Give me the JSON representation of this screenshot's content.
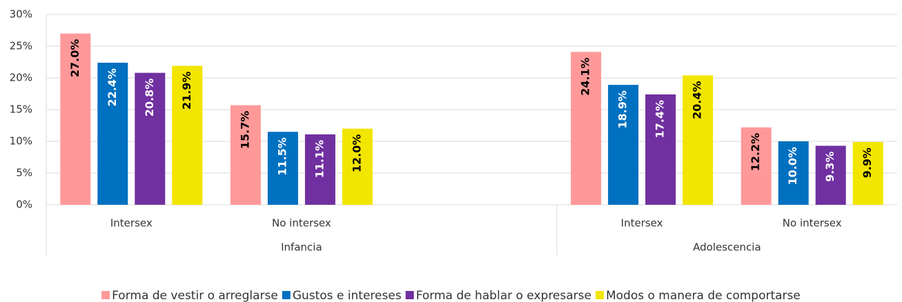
{
  "chart_data": {
    "type": "bar",
    "categories": [
      "Intersex",
      "No intersex",
      null,
      "Intersex",
      "No intersex"
    ],
    "groups": [
      {
        "name": "Infancia",
        "size": 3
      },
      {
        "name": "Adolescencia",
        "size": 2
      }
    ],
    "series": [
      {
        "name": "Forma de vestir o arreglarse",
        "color": "#ff9999",
        "label_color": "#000000",
        "values": [
          27.0,
          15.7,
          null,
          24.1,
          12.2
        ],
        "value_labels": [
          "27.0%",
          "15.7%",
          null,
          "24.1%",
          "12.2%"
        ]
      },
      {
        "name": "Gustos e intereses",
        "color": "#0070c0",
        "label_color": "#ffffff",
        "values": [
          22.4,
          11.5,
          null,
          18.9,
          10.0
        ],
        "value_labels": [
          "22.4%",
          "11.5%",
          null,
          "18.9%",
          "10.0%"
        ]
      },
      {
        "name": "Forma de hablar o expresarse",
        "color": "#7030a0",
        "label_color": "#ffffff",
        "values": [
          20.8,
          11.1,
          null,
          17.4,
          9.3
        ],
        "value_labels": [
          "20.8%",
          "11.1%",
          null,
          "17.4%",
          "9.3%"
        ]
      },
      {
        "name": "Modos o manera de comportarse",
        "color": "#f2e500",
        "label_color": "#000000",
        "values": [
          21.9,
          12.0,
          null,
          20.4,
          9.9
        ],
        "value_labels": [
          "21.9%",
          "12.0%",
          null,
          "20.4%",
          "9.9%"
        ]
      }
    ],
    "ylim": [
      0,
      30
    ],
    "yticks": [
      {
        "value": 0,
        "label": "0%"
      },
      {
        "value": 5,
        "label": "5%"
      },
      {
        "value": 10,
        "label": "10%"
      },
      {
        "value": 15,
        "label": "15%"
      },
      {
        "value": 20,
        "label": "20%"
      },
      {
        "value": 25,
        "label": "25%"
      },
      {
        "value": 30,
        "label": "30%"
      }
    ],
    "grid": true
  }
}
